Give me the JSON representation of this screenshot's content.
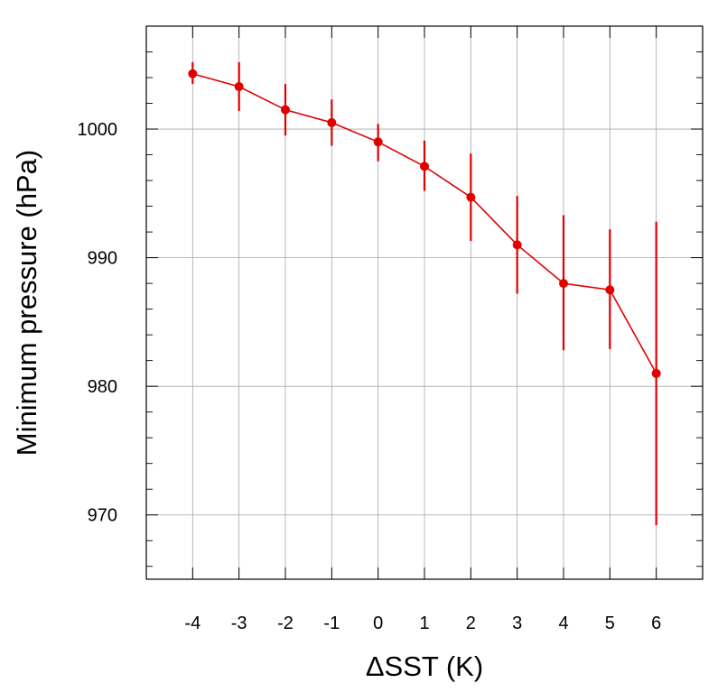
{
  "chart_data": {
    "type": "line",
    "title": "",
    "xlabel": "ΔSST (K)",
    "ylabel": "Minimum pressure (hPa)",
    "xlim": [
      -5,
      7
    ],
    "ylim": [
      965,
      1008
    ],
    "x_ticks": [
      "-4",
      "-3",
      "-2",
      "-1",
      "0",
      "1",
      "2",
      "3",
      "4",
      "5",
      "6"
    ],
    "y_ticks": [
      "970",
      "980",
      "990",
      "1000"
    ],
    "grid": true,
    "series_color": "#e00000",
    "series": [
      {
        "x": [
          -4,
          -3,
          -2,
          -1,
          0,
          1,
          2,
          3,
          4,
          5,
          6
        ],
        "y": [
          1004.3,
          1003.3,
          1001.5,
          1000.5,
          999.0,
          997.1,
          994.7,
          991.0,
          988.0,
          987.5,
          981.0
        ],
        "y_low": [
          1003.5,
          1001.4,
          999.5,
          998.7,
          997.5,
          995.2,
          991.3,
          987.2,
          982.8,
          982.9,
          969.2
        ],
        "y_high": [
          1005.2,
          1005.2,
          1003.5,
          1002.3,
          1000.4,
          999.1,
          998.1,
          994.8,
          993.3,
          992.2,
          992.8
        ]
      }
    ]
  }
}
